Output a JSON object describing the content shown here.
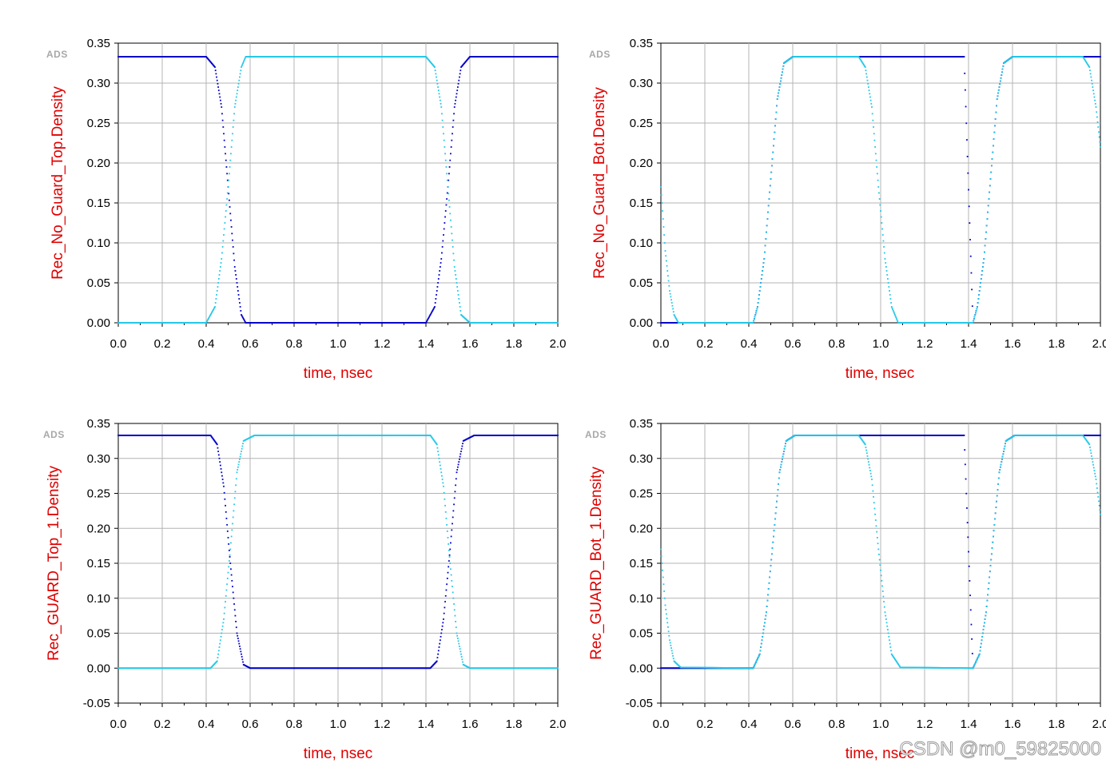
{
  "watermark": "CSDN @m0_59825000",
  "ads_label": "ADS",
  "colors": {
    "dark_trace": "#0000c8",
    "light_trace": "#22c8e8",
    "grid": "#b4b4b4",
    "axis_title": "#e00000"
  },
  "chart_data": [
    {
      "type": "scatter",
      "ylabel": "Rec_No_Guard_Top.Density",
      "xlabel": "time, nsec",
      "xlim": [
        0.0,
        2.0
      ],
      "ylim": [
        0.0,
        0.35
      ],
      "xticks": [
        "0.0",
        "0.2",
        "0.4",
        "0.6",
        "0.8",
        "1.0",
        "1.2",
        "1.4",
        "1.6",
        "1.8",
        "2.0"
      ],
      "yticks": [
        "0.00",
        "0.05",
        "0.10",
        "0.15",
        "0.20",
        "0.25",
        "0.30",
        "0.35"
      ],
      "grid": true,
      "series": [
        {
          "color": "#0000c8",
          "points": [
            [
              0.0,
              0.333
            ],
            [
              0.31,
              0.333
            ],
            [
              0.4,
              0.333
            ],
            [
              0.44,
              0.32
            ],
            [
              0.47,
              0.27
            ],
            [
              0.5,
              0.17
            ],
            [
              0.53,
              0.07
            ],
            [
              0.56,
              0.01
            ],
            [
              0.58,
              0.0
            ],
            [
              0.92,
              0.0
            ],
            [
              1.1,
              0.0
            ],
            [
              1.34,
              0.0
            ],
            [
              1.4,
              0.0
            ],
            [
              1.44,
              0.02
            ],
            [
              1.47,
              0.08
            ],
            [
              1.5,
              0.17
            ],
            [
              1.53,
              0.27
            ],
            [
              1.56,
              0.32
            ],
            [
              1.6,
              0.333
            ],
            [
              1.8,
              0.333
            ],
            [
              2.0,
              0.333
            ]
          ]
        },
        {
          "color": "#22c8e8",
          "points": [
            [
              0.0,
              0.0
            ],
            [
              0.31,
              0.0
            ],
            [
              0.4,
              0.0
            ],
            [
              0.44,
              0.02
            ],
            [
              0.47,
              0.08
            ],
            [
              0.5,
              0.17
            ],
            [
              0.53,
              0.27
            ],
            [
              0.56,
              0.32
            ],
            [
              0.58,
              0.333
            ],
            [
              0.92,
              0.333
            ],
            [
              1.1,
              0.333
            ],
            [
              1.34,
              0.333
            ],
            [
              1.4,
              0.333
            ],
            [
              1.44,
              0.32
            ],
            [
              1.47,
              0.27
            ],
            [
              1.5,
              0.17
            ],
            [
              1.53,
              0.07
            ],
            [
              1.56,
              0.01
            ],
            [
              1.6,
              0.0
            ],
            [
              1.8,
              0.0
            ],
            [
              2.0,
              0.0
            ]
          ]
        }
      ]
    },
    {
      "type": "scatter",
      "ylabel": "Rec_No_Guard_Bot.Density",
      "xlabel": "time, nsec",
      "xlim": [
        0.0,
        2.0
      ],
      "ylim": [
        0.0,
        0.35
      ],
      "xticks": [
        "0.0",
        "0.2",
        "0.4",
        "0.6",
        "0.8",
        "1.0",
        "1.2",
        "1.4",
        "1.6",
        "1.8",
        "2.0"
      ],
      "yticks": [
        "0.00",
        "0.05",
        "0.10",
        "0.15",
        "0.20",
        "0.25",
        "0.30",
        "0.35"
      ],
      "grid": true,
      "series": [
        {
          "color": "#0000c8",
          "points": [
            [
              0.0,
              0.0
            ],
            [
              0.42,
              0.0
            ],
            [
              0.44,
              0.02
            ],
            [
              0.47,
              0.08
            ],
            [
              0.5,
              0.18
            ],
            [
              0.53,
              0.28
            ],
            [
              0.56,
              0.325
            ],
            [
              0.6,
              0.333
            ],
            [
              0.82,
              0.333
            ],
            [
              0.9,
              0.333
            ],
            [
              1.1,
              0.333
            ],
            [
              1.38,
              0.333
            ],
            [
              1.42,
              0.0
            ],
            [
              1.44,
              0.02
            ],
            [
              1.47,
              0.08
            ],
            [
              1.5,
              0.18
            ],
            [
              1.53,
              0.28
            ],
            [
              1.56,
              0.325
            ],
            [
              1.6,
              0.333
            ],
            [
              1.82,
              0.333
            ],
            [
              2.0,
              0.333
            ]
          ]
        },
        {
          "color": "#22c8e8",
          "points": [
            [
              0.0,
              0.17
            ],
            [
              0.02,
              0.09
            ],
            [
              0.04,
              0.04
            ],
            [
              0.06,
              0.01
            ],
            [
              0.08,
              0.0
            ],
            [
              0.42,
              0.0
            ],
            [
              0.44,
              0.02
            ],
            [
              0.47,
              0.08
            ],
            [
              0.5,
              0.18
            ],
            [
              0.53,
              0.28
            ],
            [
              0.56,
              0.325
            ],
            [
              0.6,
              0.333
            ],
            [
              0.9,
              0.333
            ],
            [
              0.93,
              0.32
            ],
            [
              0.96,
              0.27
            ],
            [
              0.99,
              0.17
            ],
            [
              1.02,
              0.08
            ],
            [
              1.05,
              0.02
            ],
            [
              1.08,
              0.0
            ],
            [
              1.42,
              0.0
            ],
            [
              1.44,
              0.02
            ],
            [
              1.47,
              0.08
            ],
            [
              1.5,
              0.18
            ],
            [
              1.53,
              0.28
            ],
            [
              1.56,
              0.325
            ],
            [
              1.6,
              0.333
            ],
            [
              1.92,
              0.333
            ],
            [
              1.95,
              0.32
            ],
            [
              1.98,
              0.27
            ],
            [
              2.0,
              0.22
            ]
          ]
        }
      ]
    },
    {
      "type": "scatter",
      "ylabel": "Rec_GUARD_Top_1.Density",
      "xlabel": "time, nsec",
      "xlim": [
        0.0,
        2.0
      ],
      "ylim": [
        -0.05,
        0.35
      ],
      "xticks": [
        "0.0",
        "0.2",
        "0.4",
        "0.6",
        "0.8",
        "1.0",
        "1.2",
        "1.4",
        "1.6",
        "1.8",
        "2.0"
      ],
      "yticks": [
        "-0.05",
        "0.00",
        "0.05",
        "0.10",
        "0.15",
        "0.20",
        "0.25",
        "0.30",
        "0.35"
      ],
      "grid": true,
      "series": [
        {
          "color": "#0000c8",
          "points": [
            [
              0.0,
              0.333
            ],
            [
              0.3,
              0.333
            ],
            [
              0.42,
              0.333
            ],
            [
              0.45,
              0.32
            ],
            [
              0.48,
              0.26
            ],
            [
              0.51,
              0.15
            ],
            [
              0.54,
              0.05
            ],
            [
              0.57,
              0.005
            ],
            [
              0.6,
              0.0
            ],
            [
              0.92,
              0.0
            ],
            [
              1.1,
              0.0
            ],
            [
              1.3,
              0.0
            ],
            [
              1.42,
              0.0
            ],
            [
              1.45,
              0.01
            ],
            [
              1.48,
              0.07
            ],
            [
              1.51,
              0.17
            ],
            [
              1.54,
              0.28
            ],
            [
              1.57,
              0.325
            ],
            [
              1.62,
              0.333
            ],
            [
              1.8,
              0.333
            ],
            [
              2.0,
              0.333
            ]
          ]
        },
        {
          "color": "#22c8e8",
          "points": [
            [
              0.0,
              0.0
            ],
            [
              0.3,
              0.0
            ],
            [
              0.42,
              0.0
            ],
            [
              0.45,
              0.01
            ],
            [
              0.48,
              0.07
            ],
            [
              0.51,
              0.17
            ],
            [
              0.54,
              0.28
            ],
            [
              0.57,
              0.325
            ],
            [
              0.62,
              0.333
            ],
            [
              0.92,
              0.333
            ],
            [
              1.1,
              0.333
            ],
            [
              1.3,
              0.333
            ],
            [
              1.42,
              0.333
            ],
            [
              1.45,
              0.32
            ],
            [
              1.48,
              0.26
            ],
            [
              1.51,
              0.15
            ],
            [
              1.54,
              0.05
            ],
            [
              1.57,
              0.005
            ],
            [
              1.6,
              0.0
            ],
            [
              1.8,
              0.0
            ],
            [
              2.0,
              0.0
            ]
          ]
        }
      ]
    },
    {
      "type": "scatter",
      "ylabel": "Rec_GUARD_Bot_1.Density",
      "xlabel": "time, nsec",
      "xlim": [
        0.0,
        2.0
      ],
      "ylim": [
        -0.05,
        0.35
      ],
      "xticks": [
        "0.0",
        "0.2",
        "0.4",
        "0.6",
        "0.8",
        "1.0",
        "1.2",
        "1.4",
        "1.6",
        "1.8",
        "2.0"
      ],
      "yticks": [
        "-0.05",
        "0.00",
        "0.05",
        "0.10",
        "0.15",
        "0.20",
        "0.25",
        "0.30",
        "0.35"
      ],
      "grid": true,
      "series": [
        {
          "color": "#0000c8",
          "points": [
            [
              0.0,
              0.0
            ],
            [
              0.42,
              0.0
            ],
            [
              0.45,
              0.02
            ],
            [
              0.48,
              0.08
            ],
            [
              0.51,
              0.18
            ],
            [
              0.54,
              0.28
            ],
            [
              0.57,
              0.325
            ],
            [
              0.61,
              0.333
            ],
            [
              0.82,
              0.333
            ],
            [
              0.92,
              0.333
            ],
            [
              1.1,
              0.333
            ],
            [
              1.38,
              0.333
            ],
            [
              1.42,
              0.0
            ],
            [
              1.45,
              0.02
            ],
            [
              1.48,
              0.08
            ],
            [
              1.51,
              0.18
            ],
            [
              1.54,
              0.28
            ],
            [
              1.57,
              0.325
            ],
            [
              1.61,
              0.333
            ],
            [
              1.82,
              0.333
            ],
            [
              2.0,
              0.333
            ]
          ]
        },
        {
          "color": "#22c8e8",
          "points": [
            [
              0.0,
              0.17
            ],
            [
              0.02,
              0.09
            ],
            [
              0.04,
              0.04
            ],
            [
              0.06,
              0.01
            ],
            [
              0.09,
              0.001
            ],
            [
              0.42,
              0.0
            ],
            [
              0.45,
              0.02
            ],
            [
              0.48,
              0.08
            ],
            [
              0.51,
              0.18
            ],
            [
              0.54,
              0.28
            ],
            [
              0.57,
              0.325
            ],
            [
              0.61,
              0.333
            ],
            [
              0.9,
              0.333
            ],
            [
              0.93,
              0.32
            ],
            [
              0.96,
              0.27
            ],
            [
              0.99,
              0.17
            ],
            [
              1.02,
              0.08
            ],
            [
              1.05,
              0.02
            ],
            [
              1.09,
              0.001
            ],
            [
              1.42,
              0.0
            ],
            [
              1.45,
              0.02
            ],
            [
              1.48,
              0.08
            ],
            [
              1.51,
              0.18
            ],
            [
              1.54,
              0.28
            ],
            [
              1.57,
              0.325
            ],
            [
              1.61,
              0.333
            ],
            [
              1.92,
              0.333
            ],
            [
              1.95,
              0.32
            ],
            [
              1.98,
              0.27
            ],
            [
              2.0,
              0.22
            ]
          ]
        }
      ]
    }
  ]
}
